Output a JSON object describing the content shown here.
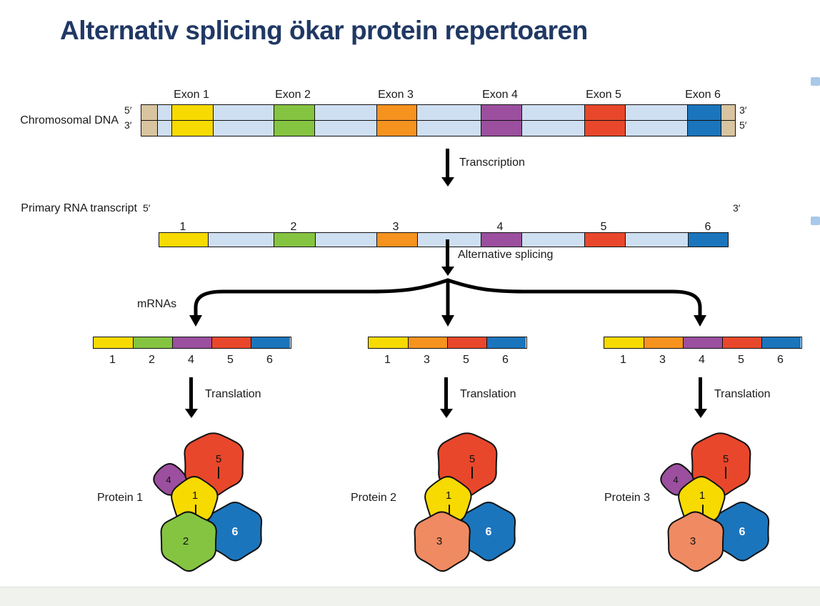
{
  "title": "Alternativ splicing ökar protein repertoaren",
  "labels": {
    "chromosomal_dna": "Chromosomal DNA",
    "primary_rna": "Primary RNA transcript",
    "transcription": "Transcription",
    "alternative_splicing": "Alternative splicing",
    "mrnas": "mRNAs",
    "translation": "Translation"
  },
  "dna": {
    "exon_labels": [
      "Exon 1",
      "Exon 2",
      "Exon 3",
      "Exon 4",
      "Exon 5",
      "Exon 6"
    ],
    "left_top": "5′",
    "left_bottom": "3′",
    "right_top": "3′",
    "right_bottom": "5′"
  },
  "rna": {
    "left": "5′",
    "right": "3′",
    "numbers": [
      "1",
      "2",
      "3",
      "4",
      "5",
      "6"
    ]
  },
  "mrnas": [
    {
      "exons": [
        "1",
        "2",
        "4",
        "5",
        "6"
      ]
    },
    {
      "exons": [
        "1",
        "3",
        "5",
        "6"
      ]
    },
    {
      "exons": [
        "1",
        "3",
        "4",
        "5",
        "6"
      ]
    }
  ],
  "proteins": [
    {
      "label": "Protein 1",
      "subunits": [
        "4",
        "5",
        "6",
        "1",
        "2"
      ]
    },
    {
      "label": "Protein 2",
      "subunits": [
        "5",
        "6",
        "1",
        "3"
      ]
    },
    {
      "label": "Protein 3",
      "subunits": [
        "4",
        "5",
        "6",
        "1",
        "3"
      ]
    }
  ],
  "colors": {
    "exon1": "#f7da00",
    "exon2": "#85c441",
    "exon3": "#f6921e",
    "exon4": "#9b4f9e",
    "exon5": "#e8472b",
    "exon6": "#1b75bc",
    "subunit3": "#f08a62",
    "intron": "#cfdff2",
    "endcap": "#d8c49e",
    "title": "#203864",
    "scrollmark": "#a8c9ea"
  }
}
